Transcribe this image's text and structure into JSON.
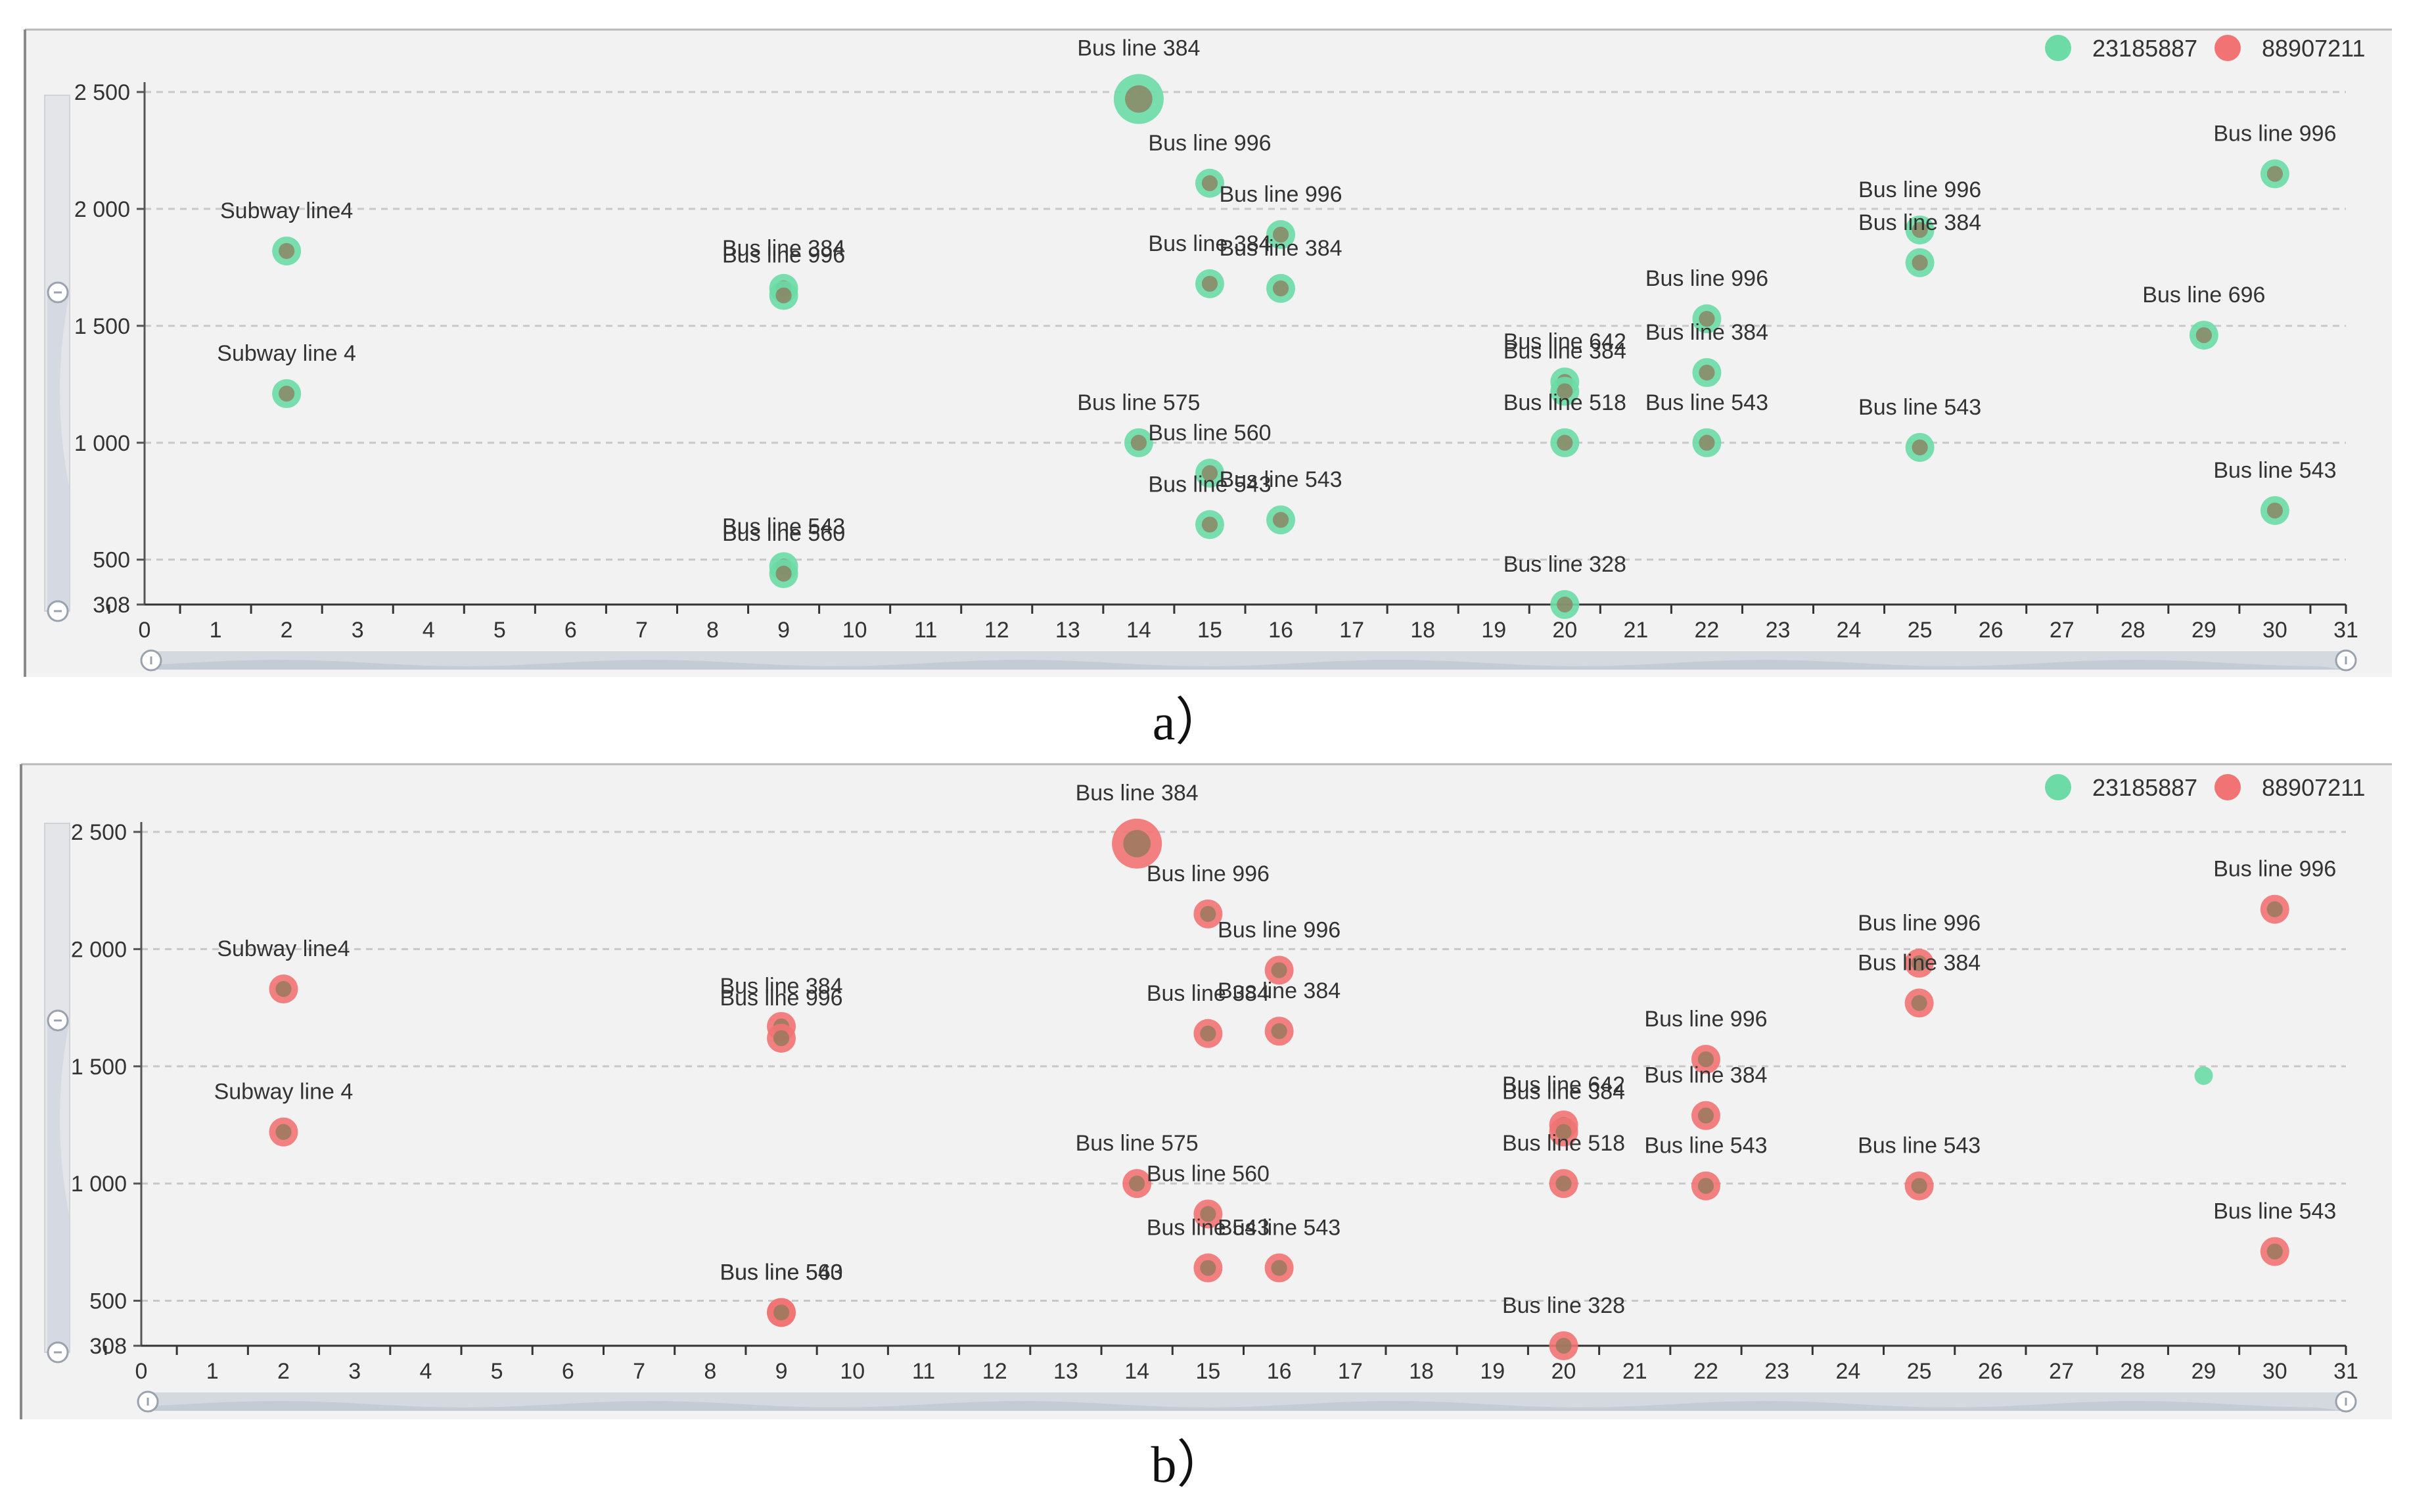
{
  "figure": {
    "panel_captions": [
      "a）",
      "b）"
    ]
  },
  "legend": {
    "series": [
      {
        "name": "23185887",
        "color": "#6cdba6"
      },
      {
        "name": "88907211",
        "color": "#f27373"
      }
    ]
  },
  "colors": {
    "series_green": "#6cdba6",
    "series_red": "#f27373",
    "inner_dot": "#8e7a5a",
    "plot_background": "#f2f2f2",
    "zoom_track": "#d4d9e0"
  },
  "chart_data": [
    {
      "type": "scatter",
      "panel": "a",
      "highlighted_series": "23185887",
      "title": "",
      "xlabel": "",
      "ylabel": "",
      "x_ticks": [
        0,
        1,
        2,
        3,
        4,
        5,
        6,
        7,
        8,
        9,
        10,
        11,
        12,
        13,
        14,
        15,
        16,
        17,
        18,
        19,
        20,
        21,
        22,
        23,
        24,
        25,
        26,
        27,
        28,
        29,
        30,
        31
      ],
      "y_ticks": [
        "2 500",
        "2 000",
        "1 500",
        "1 000",
        "500",
        "308"
      ],
      "y_tick_values": [
        2500,
        2000,
        1500,
        1000,
        500,
        308
      ],
      "xlim": [
        0,
        31
      ],
      "ylim": [
        308,
        2500
      ],
      "grid": true,
      "legend_position": "top-right",
      "points": [
        {
          "x": 14,
          "y": 2470,
          "label": "Bus line 384"
        },
        {
          "x": 15,
          "y": 2110,
          "label": "Bus line 996"
        },
        {
          "x": 16,
          "y": 1890,
          "label": "Bus line 996"
        },
        {
          "x": 2,
          "y": 1820,
          "label": "Subway line4"
        },
        {
          "x": 9,
          "y": 1660,
          "label": "Bus line 384"
        },
        {
          "x": 9,
          "y": 1630,
          "label": "Bus line 996"
        },
        {
          "x": 15,
          "y": 1680,
          "label": "Bus line 384"
        },
        {
          "x": 16,
          "y": 1660,
          "label": "Bus line 384"
        },
        {
          "x": 25,
          "y": 1910,
          "label": "Bus line 996"
        },
        {
          "x": 25,
          "y": 1770,
          "label": "Bus line 384"
        },
        {
          "x": 30,
          "y": 2150,
          "label": "Bus line 996"
        },
        {
          "x": 22,
          "y": 1530,
          "label": "Bus line 996"
        },
        {
          "x": 29,
          "y": 1460,
          "label": "Bus line 696"
        },
        {
          "x": 2,
          "y": 1210,
          "label": "Subway line 4"
        },
        {
          "x": 20,
          "y": 1260,
          "label": "Bus line 642"
        },
        {
          "x": 20,
          "y": 1220,
          "label": "Bus line 384"
        },
        {
          "x": 22,
          "y": 1300,
          "label": "Bus line 384"
        },
        {
          "x": 14,
          "y": 1000,
          "label": "Bus line 575"
        },
        {
          "x": 20,
          "y": 1000,
          "label": "Bus line 518"
        },
        {
          "x": 22,
          "y": 1000,
          "label": "Bus line 543"
        },
        {
          "x": 25,
          "y": 980,
          "label": "Bus line 543"
        },
        {
          "x": 15,
          "y": 870,
          "label": "Bus line 560"
        },
        {
          "x": 15,
          "y": 650,
          "label": "Bus line 543"
        },
        {
          "x": 16,
          "y": 670,
          "label": "Bus line 543"
        },
        {
          "x": 30,
          "y": 710,
          "label": "Bus line 543"
        },
        {
          "x": 9,
          "y": 470,
          "label": "Bus line 543"
        },
        {
          "x": 9,
          "y": 440,
          "label": "Bus line 560"
        },
        {
          "x": 20,
          "y": 300,
          "label": "Bus line 328"
        }
      ]
    },
    {
      "type": "scatter",
      "panel": "b",
      "highlighted_series": "88907211",
      "title": "",
      "xlabel": "",
      "ylabel": "",
      "x_ticks": [
        0,
        1,
        2,
        3,
        4,
        5,
        6,
        7,
        8,
        9,
        10,
        11,
        12,
        13,
        14,
        15,
        16,
        17,
        18,
        19,
        20,
        21,
        22,
        23,
        24,
        25,
        26,
        27,
        28,
        29,
        30,
        31
      ],
      "y_ticks": [
        "2 500",
        "2 000",
        "1 500",
        "1 000",
        "500",
        "308"
      ],
      "y_tick_values": [
        2500,
        2000,
        1500,
        1000,
        500,
        308
      ],
      "xlim": [
        0,
        31
      ],
      "ylim": [
        308,
        2500
      ],
      "grid": true,
      "legend_position": "top-right",
      "points": [
        {
          "x": 14,
          "y": 2450,
          "label": "Bus line 384"
        },
        {
          "x": 15,
          "y": 2150,
          "label": "Bus line 996"
        },
        {
          "x": 16,
          "y": 1910,
          "label": "Bus line 996"
        },
        {
          "x": 2,
          "y": 1830,
          "label": "Subway line4"
        },
        {
          "x": 9,
          "y": 1670,
          "label": "Bus line 384"
        },
        {
          "x": 9,
          "y": 1620,
          "label": "Bus line 996"
        },
        {
          "x": 15,
          "y": 1640,
          "label": "Bus line 384"
        },
        {
          "x": 16,
          "y": 1650,
          "label": "Bus line 384"
        },
        {
          "x": 25,
          "y": 1940,
          "label": "Bus line 996"
        },
        {
          "x": 25,
          "y": 1770,
          "label": "Bus line 384"
        },
        {
          "x": 30,
          "y": 2170,
          "label": "Bus line 996"
        },
        {
          "x": 22,
          "y": 1530,
          "label": "Bus line 996"
        },
        {
          "x": 29,
          "y": 1460,
          "label": ""
        },
        {
          "x": 2,
          "y": 1220,
          "label": "Subway line 4"
        },
        {
          "x": 20,
          "y": 1250,
          "label": "Bus line 642"
        },
        {
          "x": 20,
          "y": 1220,
          "label": "Bus line 384"
        },
        {
          "x": 22,
          "y": 1290,
          "label": "Bus line 384"
        },
        {
          "x": 14,
          "y": 1000,
          "label": "Bus line 575"
        },
        {
          "x": 20,
          "y": 1000,
          "label": "Bus line 518"
        },
        {
          "x": 22,
          "y": 990,
          "label": "Bus line 543"
        },
        {
          "x": 25,
          "y": 990,
          "label": "Bus line 543"
        },
        {
          "x": 15,
          "y": 870,
          "label": "Bus line 560"
        },
        {
          "x": 15,
          "y": 640,
          "label": "Bus line 543"
        },
        {
          "x": 16,
          "y": 640,
          "label": "Bus line 543"
        },
        {
          "x": 30,
          "y": 710,
          "label": "Bus line 543"
        },
        {
          "x": 9,
          "y": 450,
          "label": "Bus line 543"
        },
        {
          "x": 9,
          "y": 450,
          "label": "Bus line 560"
        },
        {
          "x": 20,
          "y": 300,
          "label": "Bus line 328"
        }
      ]
    }
  ]
}
